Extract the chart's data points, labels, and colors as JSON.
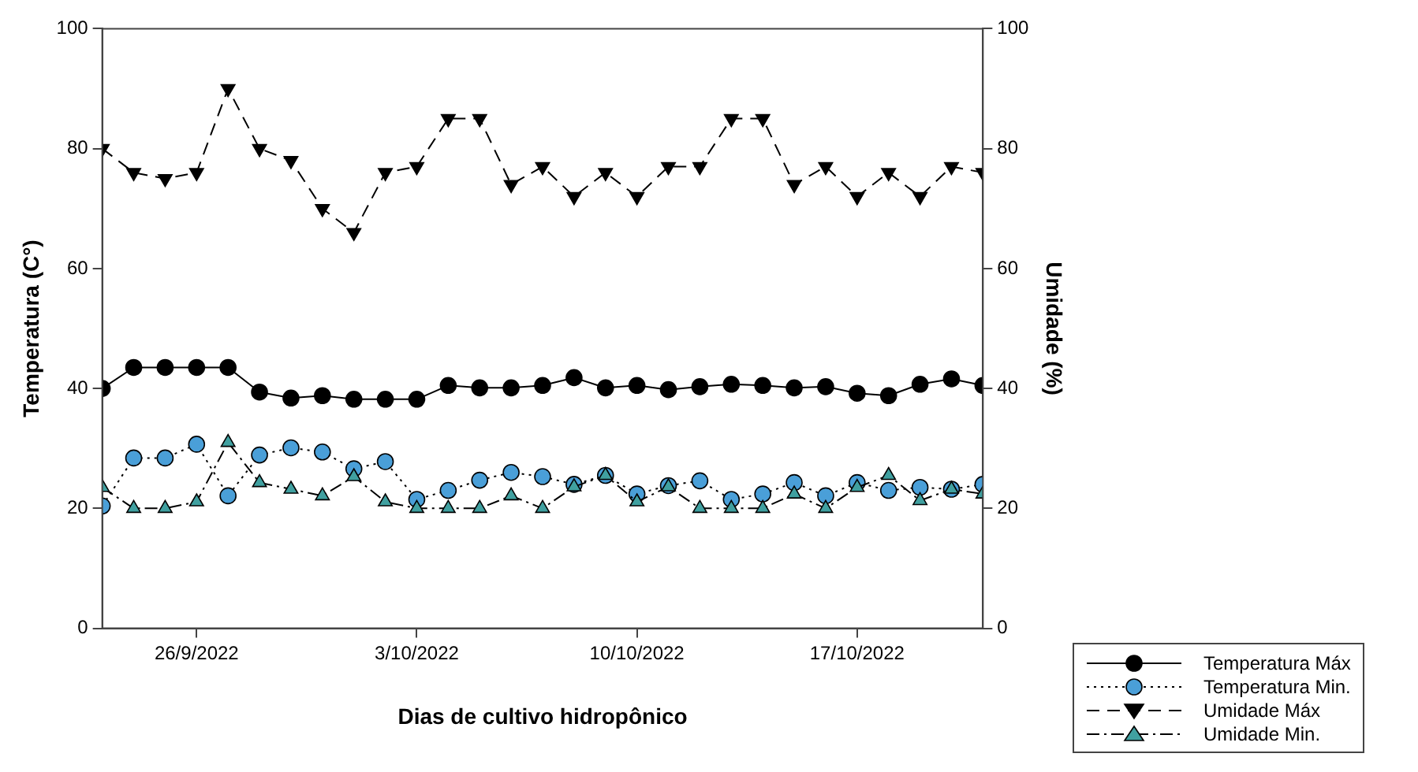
{
  "chart_data": {
    "type": "line",
    "xlabel": "Dias de cultivo hidropônico",
    "ylabel": "Temperatura (C°)",
    "y2label": "Umidade (%)",
    "x": [
      "2022-09-23",
      "2022-09-24",
      "2022-09-25",
      "2022-09-26",
      "2022-09-27",
      "2022-09-28",
      "2022-09-29",
      "2022-09-30",
      "2022-10-01",
      "2022-10-02",
      "2022-10-03",
      "2022-10-04",
      "2022-10-05",
      "2022-10-06",
      "2022-10-07",
      "2022-10-08",
      "2022-10-09",
      "2022-10-10",
      "2022-10-11",
      "2022-10-12",
      "2022-10-13",
      "2022-10-14",
      "2022-10-15",
      "2022-10-16",
      "2022-10-17",
      "2022-10-18",
      "2022-10-19",
      "2022-10-20",
      "2022-10-21"
    ],
    "xlim": [
      "2022-09-23",
      "2022-10-21"
    ],
    "xticks": [
      {
        "value": "2022-09-26",
        "label": "26/9/2022"
      },
      {
        "value": "2022-10-03",
        "label": "3/10/2022"
      },
      {
        "value": "2022-10-10",
        "label": "10/10/2022"
      },
      {
        "value": "2022-10-17",
        "label": "17/10/2022"
      }
    ],
    "ylim": [
      0,
      100
    ],
    "yticks": [
      0,
      20,
      40,
      60,
      80,
      100
    ],
    "y2lim": [
      0,
      100
    ],
    "y2ticks": [
      0,
      20,
      40,
      60,
      80,
      100
    ],
    "grid": false,
    "legend": "bottom right",
    "series": [
      {
        "name": "Temperatura Máx",
        "color": "#000000",
        "marker": "circle",
        "line_style": "solid",
        "values": [
          40,
          43.5,
          43.5,
          43.5,
          43.5,
          39.4,
          38.4,
          38.8,
          38.2,
          38.2,
          38.2,
          40.5,
          40.1,
          40.1,
          40.5,
          41.8,
          40.1,
          40.5,
          39.8,
          40.3,
          40.7,
          40.5,
          40.1,
          40.3,
          39.2,
          38.8,
          40.7,
          41.6,
          40.5
        ]
      },
      {
        "name": "Temperatura Min.",
        "color": "#4a9fd8",
        "marker": "circle",
        "line_style": "dotted",
        "values": [
          20.4,
          28.4,
          28.4,
          30.7,
          22.1,
          28.9,
          30.1,
          29.4,
          26.6,
          27.8,
          21.5,
          23,
          24.7,
          26,
          25.3,
          24,
          25.5,
          22.4,
          23.8,
          24.6,
          21.5,
          22.4,
          24.3,
          22.1,
          24.3,
          23,
          23.5,
          23.2,
          24
        ]
      },
      {
        "name": "Umidade Máx",
        "color": "#000000",
        "marker": "triangle_down",
        "line_style": "dashed",
        "axis": "y2",
        "values": [
          80,
          76,
          75,
          76,
          90,
          80,
          78,
          70,
          66,
          76,
          77,
          85,
          85,
          74,
          77,
          72,
          76,
          72,
          77,
          77,
          85,
          85,
          74,
          77,
          72,
          76,
          72,
          77,
          76
        ]
      },
      {
        "name": "Umidade Min.",
        "color": "#40a0a0",
        "marker": "triangle",
        "line_style": "dashdot",
        "axis": "y2",
        "values": [
          23.5,
          20,
          20,
          21.1,
          31,
          24.3,
          23.2,
          22.1,
          25.3,
          21.1,
          20,
          20,
          20,
          22.1,
          20,
          23.6,
          25.5,
          21.1,
          23.6,
          20,
          20,
          20,
          22.4,
          20,
          23.5,
          25.5,
          21.3,
          23.2,
          22.4
        ]
      }
    ]
  }
}
